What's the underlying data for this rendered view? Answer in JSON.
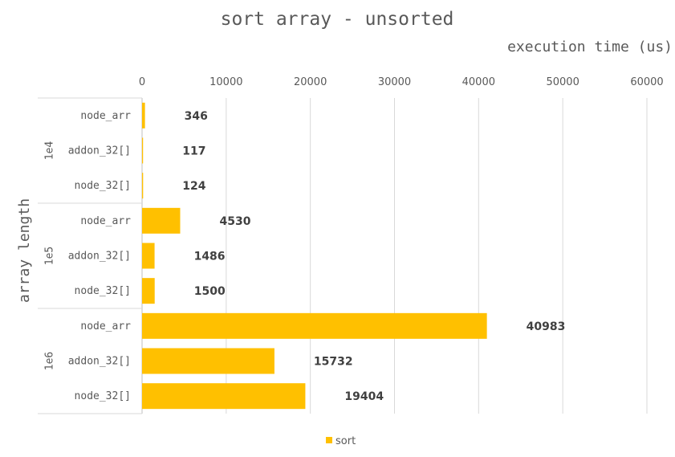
{
  "chart_data": {
    "type": "bar",
    "orientation": "horizontal",
    "title": "sort array - unsorted",
    "xlabel": "execution time (us)",
    "ylabel": "array length",
    "xlim": [
      0,
      60000
    ],
    "xticks": [
      "0",
      "10000",
      "20000",
      "30000",
      "40000",
      "50000",
      "60000"
    ],
    "xtick_values": [
      0,
      10000,
      20000,
      30000,
      40000,
      50000,
      60000
    ],
    "groups": [
      {
        "name": "1e4",
        "categories": [
          "node_arr",
          "addon_32[]",
          "node_32[]"
        ],
        "values": [
          346,
          117,
          124
        ]
      },
      {
        "name": "1e5",
        "categories": [
          "node_arr",
          "addon_32[]",
          "node_32[]"
        ],
        "values": [
          4530,
          1486,
          1500
        ]
      },
      {
        "name": "1e6",
        "categories": [
          "node_arr",
          "addon_32[]",
          "node_32[]"
        ],
        "values": [
          40983,
          15732,
          19404
        ]
      }
    ],
    "series": [
      {
        "name": "sort",
        "color": "#FFC000"
      }
    ],
    "grid": true,
    "legend": "bottom"
  }
}
